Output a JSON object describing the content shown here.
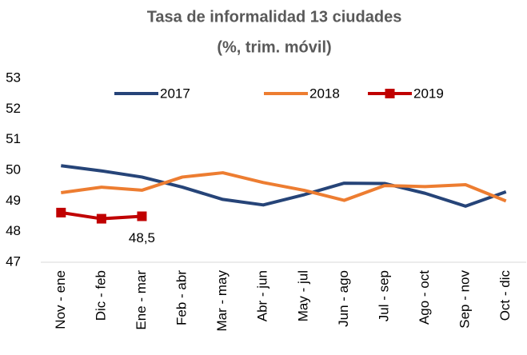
{
  "chart_data": {
    "type": "line",
    "title": [
      "Tasa de informalidad 13 ciudades",
      "(%, trim. móvil)"
    ],
    "categories": [
      "Nov - ene",
      "Dic - feb",
      "Ene - mar",
      "Feb - abr",
      "Mar - may",
      "Abr - jun",
      "May - jul",
      "Jun - ago",
      "Jul - sep",
      "Ago - oct",
      "Sep - nov",
      "Oct - dic"
    ],
    "series": [
      {
        "name": "2017",
        "color": "#264478",
        "values": [
          50.15,
          49.98,
          49.78,
          49.45,
          49.05,
          48.87,
          49.2,
          49.58,
          49.57,
          49.25,
          48.83,
          49.3
        ]
      },
      {
        "name": "2018",
        "color": "#ed7d31",
        "values": [
          49.27,
          49.45,
          49.35,
          49.78,
          49.92,
          49.6,
          49.35,
          49.02,
          49.5,
          49.47,
          49.53,
          49.0
        ]
      },
      {
        "name": "2019",
        "color": "#c00000",
        "marker": "square",
        "values": [
          48.62,
          48.42,
          48.5,
          null,
          null,
          null,
          null,
          null,
          null,
          null,
          null,
          null
        ],
        "value_labels": [
          null,
          null,
          "48,5",
          null,
          null,
          null,
          null,
          null,
          null,
          null,
          null,
          null
        ]
      }
    ],
    "ylim": [
      47,
      53
    ],
    "yticks": [
      47,
      48,
      49,
      50,
      51,
      52,
      53
    ],
    "grid": false,
    "legend": "top"
  }
}
